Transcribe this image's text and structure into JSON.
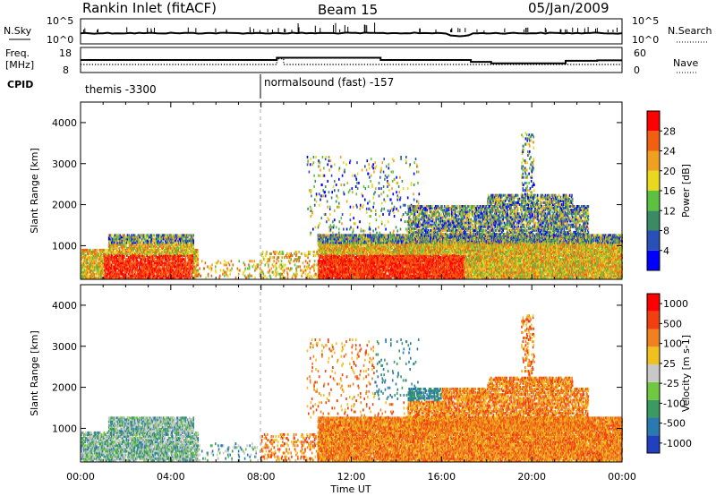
{
  "header": {
    "station": "Rankin Inlet (fitACF)",
    "beam": "Beam 15",
    "date": "05/Jan/2009"
  },
  "chart_data": [
    {
      "type": "line",
      "panel": "nsky-nsearch",
      "left_label": "N.Sky",
      "right_label": "N.Search",
      "left_ticks": [
        "10^5",
        "10^0"
      ],
      "right_ticks": [
        "10^5",
        "10^0"
      ]
    },
    {
      "type": "line",
      "panel": "freq-nave",
      "left_label_top": "Freq.",
      "left_label_bottom": "[MHz]",
      "right_label": "Nave",
      "left_ticks": [
        "18",
        "8"
      ],
      "right_ticks": [
        "60",
        "0"
      ],
      "freq_steps": [
        [
          0,
          11.2
        ],
        [
          8.7,
          11.2
        ],
        [
          8.7,
          13.5
        ],
        [
          9.0,
          13.5
        ],
        [
          9.0,
          11.2
        ],
        [
          24,
          11.2
        ]
      ],
      "nave_steps": [
        [
          0,
          24
        ],
        [
          8.7,
          24
        ],
        [
          8.7,
          18
        ],
        [
          13.3,
          18
        ],
        [
          13.3,
          24
        ],
        [
          17.3,
          24
        ],
        [
          17.3,
          29
        ],
        [
          18.2,
          29
        ],
        [
          18.2,
          33
        ],
        [
          21.5,
          33
        ],
        [
          21.5,
          26
        ],
        [
          22.9,
          26
        ],
        [
          22.9,
          25
        ],
        [
          24,
          25
        ]
      ]
    },
    {
      "type": "table",
      "panel": "cpid",
      "label": "CPID",
      "modes": [
        {
          "start": 0,
          "text": "themis -3300"
        },
        {
          "start": 8.0,
          "text": "normalsound (fast) -157"
        }
      ]
    },
    {
      "type": "heatmap",
      "panel": "power",
      "ylabel": "Slant Range [km]",
      "y_ticks": [
        1000,
        2000,
        3000,
        4000
      ],
      "ylim": [
        180,
        4500
      ],
      "xlim": [
        0,
        24
      ],
      "colorbar_label": "Power [dB]",
      "colorbar_ticks": [
        "4",
        "8",
        "12",
        "16",
        "20",
        "24",
        "28"
      ],
      "colorbar_colors": [
        "#0000ff",
        "#2850b8",
        "#3a8a64",
        "#5cc040",
        "#e8d820",
        "#f0a020",
        "#f06010",
        "#ff0000"
      ]
    },
    {
      "type": "heatmap",
      "panel": "velocity",
      "ylabel": "Slant Range [km]",
      "y_ticks": [
        1000,
        2000,
        3000,
        4000
      ],
      "ylim": [
        180,
        4500
      ],
      "xlim": [
        0,
        24
      ],
      "xlabel": "Time UT",
      "x_ticks": [
        "00:00",
        "04:00",
        "08:00",
        "12:00",
        "16:00",
        "20:00",
        "00:00"
      ],
      "colorbar_label": "Velocity [m s-1]",
      "colorbar_ticks": [
        "1000",
        "500",
        "100",
        "25",
        "-25",
        "-100",
        "-500",
        "-1000"
      ],
      "colorbar_colors": [
        "#2040c0",
        "#2a7ab0",
        "#3a9a60",
        "#70c840",
        "#c8c8c8",
        "#f0c020",
        "#f08020",
        "#f04010",
        "#ff0000"
      ]
    }
  ]
}
